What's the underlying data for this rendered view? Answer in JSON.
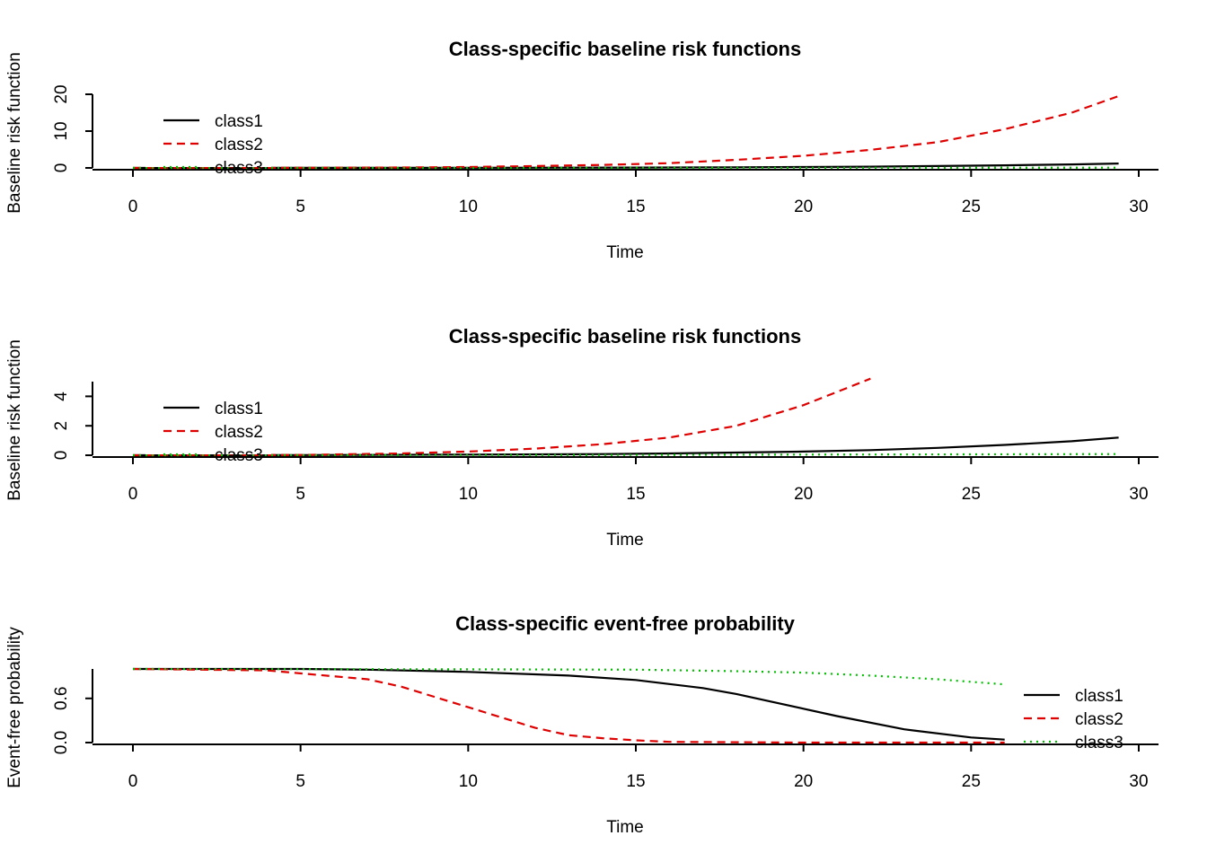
{
  "chart_data": [
    {
      "type": "line",
      "title": "Class-specific baseline risk functions",
      "xlabel": "Time",
      "ylabel": "Baseline risk function",
      "xlim": [
        0,
        30
      ],
      "ylim": [
        0,
        20
      ],
      "xticks": [
        0,
        5,
        10,
        15,
        20,
        25,
        30
      ],
      "yticks": [
        0,
        10,
        20
      ],
      "legend": "top-left",
      "series": [
        {
          "name": "class1",
          "color": "#000000",
          "dash": "solid",
          "x": [
            0,
            5,
            10,
            15,
            18,
            20,
            22,
            24,
            26,
            28,
            29.4
          ],
          "y": [
            0,
            0.02,
            0.05,
            0.1,
            0.18,
            0.25,
            0.35,
            0.5,
            0.7,
            0.95,
            1.2
          ]
        },
        {
          "name": "class2",
          "color": "#DF0000",
          "dash": "dashed",
          "x": [
            0,
            5,
            8,
            10,
            12,
            14,
            16,
            18,
            20,
            22,
            24,
            26,
            28,
            29.4
          ],
          "y": [
            0,
            0.02,
            0.12,
            0.25,
            0.5,
            0.8,
            1.3,
            2.2,
            3.3,
            4.9,
            7.0,
            10.5,
            15.0,
            19.5
          ]
        },
        {
          "name": "class3",
          "color": "#00C000",
          "dash": "dotted",
          "x": [
            0,
            5,
            10,
            15,
            20,
            25,
            29.4
          ],
          "y": [
            0,
            0.005,
            0.01,
            0.02,
            0.04,
            0.06,
            0.08
          ]
        }
      ]
    },
    {
      "type": "line",
      "title": "Class-specific baseline risk functions",
      "xlabel": "Time",
      "ylabel": "Baseline risk function",
      "xlim": [
        0,
        30
      ],
      "ylim": [
        0,
        5
      ],
      "xticks": [
        0,
        5,
        10,
        15,
        20,
        25,
        30
      ],
      "yticks": [
        0,
        2,
        4
      ],
      "legend": "top-left",
      "series": [
        {
          "name": "class1",
          "color": "#000000",
          "dash": "solid",
          "x": [
            0,
            5,
            10,
            14,
            16,
            18,
            20,
            22,
            24,
            26,
            28,
            29.4
          ],
          "y": [
            0,
            0.01,
            0.04,
            0.08,
            0.12,
            0.18,
            0.25,
            0.35,
            0.5,
            0.7,
            0.95,
            1.2
          ]
        },
        {
          "name": "class2",
          "color": "#DF0000",
          "dash": "dashed",
          "x": [
            0,
            5,
            8,
            10,
            12,
            14,
            16,
            18,
            19,
            20,
            21,
            22
          ],
          "y": [
            0,
            0.02,
            0.12,
            0.25,
            0.45,
            0.75,
            1.2,
            2.0,
            2.7,
            3.4,
            4.3,
            5.2
          ]
        },
        {
          "name": "class3",
          "color": "#00C000",
          "dash": "dotted",
          "x": [
            0,
            5,
            10,
            15,
            20,
            25,
            29.4
          ],
          "y": [
            0,
            0.005,
            0.01,
            0.02,
            0.04,
            0.06,
            0.08
          ]
        }
      ]
    },
    {
      "type": "line",
      "title": "Class-specific event-free probability",
      "xlabel": "Time",
      "ylabel": "Event-free probability",
      "xlim": [
        0,
        30
      ],
      "ylim": [
        0,
        1
      ],
      "xticks": [
        0,
        5,
        10,
        15,
        20,
        25,
        30
      ],
      "yticks": [
        "0.0",
        "0.6"
      ],
      "legend": "bottom-right",
      "series": [
        {
          "name": "class1",
          "color": "#000000",
          "dash": "solid",
          "x": [
            0,
            5,
            7,
            10,
            13,
            15,
            17,
            18,
            20,
            21,
            23,
            25,
            26
          ],
          "y": [
            1.0,
            1.0,
            0.99,
            0.96,
            0.91,
            0.85,
            0.74,
            0.66,
            0.46,
            0.36,
            0.18,
            0.07,
            0.04
          ]
        },
        {
          "name": "class2",
          "color": "#DF0000",
          "dash": "dashed",
          "x": [
            0,
            4,
            7,
            8,
            10,
            12,
            13,
            14,
            15,
            16,
            20,
            26
          ],
          "y": [
            1.0,
            0.98,
            0.86,
            0.76,
            0.48,
            0.2,
            0.1,
            0.06,
            0.03,
            0.01,
            0.0,
            0.0
          ]
        },
        {
          "name": "class3",
          "color": "#00C000",
          "dash": "dotted",
          "x": [
            0,
            10,
            15,
            18,
            20,
            22,
            24,
            26
          ],
          "y": [
            1.0,
            0.995,
            0.99,
            0.97,
            0.95,
            0.91,
            0.86,
            0.79
          ]
        }
      ]
    }
  ]
}
